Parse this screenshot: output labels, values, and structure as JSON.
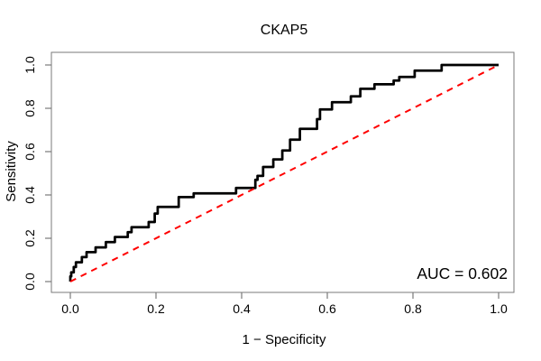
{
  "title": "CKAP5",
  "annotation": {
    "auc_label": "AUC = 0.602"
  },
  "colors": {
    "background": "#ffffff",
    "roc_curve": "#000000",
    "diagonal": "#ff0000",
    "box_and_ticks": "#7a7a7a",
    "text": "#000000"
  },
  "chart_data": {
    "type": "line",
    "title": "CKAP5",
    "xlabel": "1 − Specificity",
    "ylabel": "Sensitivity",
    "xlim": [
      0,
      1
    ],
    "ylim": [
      0,
      1
    ],
    "grid": false,
    "legend": "none",
    "x_ticks": {
      "values": [
        0.0,
        0.2,
        0.4,
        0.6,
        0.8,
        1.0
      ],
      "labels": [
        "0.0",
        "0.2",
        "0.4",
        "0.6",
        "0.8",
        "1.0"
      ]
    },
    "y_ticks": {
      "values": [
        0.0,
        0.2,
        0.4,
        0.6,
        0.8,
        1.0
      ],
      "labels": [
        "0.0",
        "0.2",
        "0.4",
        "0.6",
        "0.8",
        "1.0"
      ]
    },
    "annotations": [
      "AUC = 0.602"
    ],
    "auc": 0.602,
    "series": [
      {
        "name": "ROC curve",
        "style": "step",
        "color": "#000000",
        "stroke_width": 2.75,
        "dash": "",
        "points": [
          [
            0.0,
            0.0
          ],
          [
            0.0,
            0.024
          ],
          [
            0.002,
            0.024
          ],
          [
            0.002,
            0.043
          ],
          [
            0.008,
            0.043
          ],
          [
            0.008,
            0.067
          ],
          [
            0.013,
            0.067
          ],
          [
            0.013,
            0.089
          ],
          [
            0.027,
            0.089
          ],
          [
            0.027,
            0.113
          ],
          [
            0.038,
            0.113
          ],
          [
            0.038,
            0.136
          ],
          [
            0.059,
            0.136
          ],
          [
            0.059,
            0.158
          ],
          [
            0.083,
            0.158
          ],
          [
            0.083,
            0.182
          ],
          [
            0.104,
            0.182
          ],
          [
            0.104,
            0.206
          ],
          [
            0.134,
            0.206
          ],
          [
            0.134,
            0.228
          ],
          [
            0.143,
            0.228
          ],
          [
            0.143,
            0.251
          ],
          [
            0.183,
            0.251
          ],
          [
            0.183,
            0.275
          ],
          [
            0.197,
            0.275
          ],
          [
            0.197,
            0.314
          ],
          [
            0.204,
            0.314
          ],
          [
            0.204,
            0.345
          ],
          [
            0.253,
            0.345
          ],
          [
            0.253,
            0.39
          ],
          [
            0.288,
            0.39
          ],
          [
            0.288,
            0.407
          ],
          [
            0.387,
            0.407
          ],
          [
            0.387,
            0.432
          ],
          [
            0.432,
            0.432
          ],
          [
            0.432,
            0.47
          ],
          [
            0.437,
            0.47
          ],
          [
            0.437,
            0.488
          ],
          [
            0.45,
            0.488
          ],
          [
            0.45,
            0.529
          ],
          [
            0.474,
            0.529
          ],
          [
            0.474,
            0.564
          ],
          [
            0.495,
            0.564
          ],
          [
            0.495,
            0.605
          ],
          [
            0.513,
            0.605
          ],
          [
            0.513,
            0.655
          ],
          [
            0.536,
            0.655
          ],
          [
            0.536,
            0.705
          ],
          [
            0.576,
            0.705
          ],
          [
            0.576,
            0.75
          ],
          [
            0.583,
            0.75
          ],
          [
            0.583,
            0.795
          ],
          [
            0.611,
            0.795
          ],
          [
            0.611,
            0.828
          ],
          [
            0.655,
            0.828
          ],
          [
            0.655,
            0.855
          ],
          [
            0.677,
            0.855
          ],
          [
            0.677,
            0.89
          ],
          [
            0.71,
            0.89
          ],
          [
            0.71,
            0.911
          ],
          [
            0.755,
            0.911
          ],
          [
            0.755,
            0.928
          ],
          [
            0.768,
            0.928
          ],
          [
            0.768,
            0.945
          ],
          [
            0.804,
            0.945
          ],
          [
            0.804,
            0.974
          ],
          [
            0.867,
            0.974
          ],
          [
            0.867,
            1.0
          ],
          [
            1.0,
            1.0
          ]
        ]
      },
      {
        "name": "chance diagonal",
        "style": "line",
        "color": "#ff0000",
        "stroke_width": 2,
        "dash": "7,6",
        "points": [
          [
            0,
            0
          ],
          [
            1,
            1
          ]
        ]
      }
    ]
  }
}
